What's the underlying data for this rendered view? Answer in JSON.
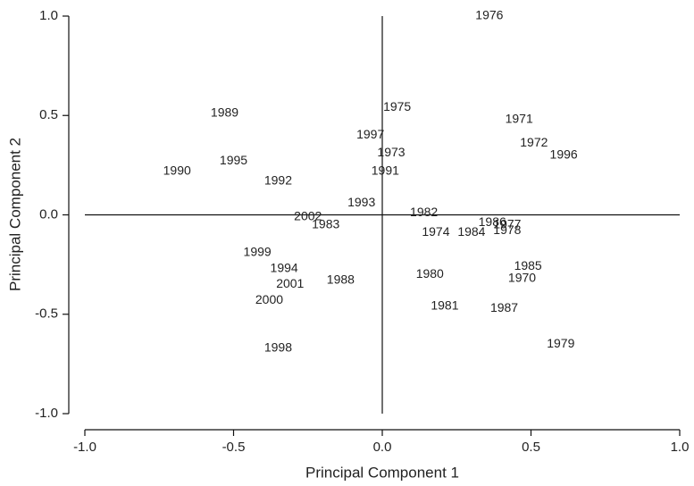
{
  "chart_data": {
    "type": "scatter",
    "xlabel": "Principal Component 1",
    "ylabel": "Principal Component 2",
    "labels": [
      "1976",
      "1989",
      "1975",
      "1971",
      "1997",
      "1972",
      "1973",
      "1996",
      "1990",
      "1995",
      "1991",
      "1992",
      "1993",
      "1982",
      "2002",
      "1983",
      "1986",
      "1977",
      "1974",
      "1984",
      "1978",
      "1999",
      "1994",
      "1985",
      "1980",
      "1988",
      "1970",
      "2001",
      "2000",
      "1981",
      "1987",
      "1998",
      "1979"
    ],
    "x": [
      0.36,
      -0.53,
      0.05,
      0.46,
      -0.04,
      0.51,
      0.03,
      0.61,
      -0.69,
      -0.5,
      0.01,
      -0.35,
      -0.07,
      0.14,
      -0.25,
      -0.19,
      0.37,
      0.42,
      0.18,
      0.3,
      0.42,
      -0.42,
      -0.33,
      0.49,
      0.16,
      -0.14,
      0.47,
      -0.31,
      -0.38,
      0.21,
      0.41,
      -0.35,
      0.6
    ],
    "y": [
      1.0,
      0.51,
      0.54,
      0.48,
      0.4,
      0.36,
      0.31,
      0.3,
      0.22,
      0.27,
      0.22,
      0.17,
      0.06,
      0.01,
      -0.01,
      -0.05,
      -0.04,
      -0.05,
      -0.09,
      -0.09,
      -0.08,
      -0.19,
      -0.27,
      -0.26,
      -0.3,
      -0.33,
      -0.32,
      -0.35,
      -0.43,
      -0.46,
      -0.47,
      -0.67,
      -0.65
    ],
    "xlim": [
      -1.0,
      1.0
    ],
    "ylim": [
      -1.0,
      1.0
    ],
    "xticks": [
      {
        "value": -1.0,
        "label": "-1.0"
      },
      {
        "value": -0.5,
        "label": "-0.5"
      },
      {
        "value": 0,
        "label": "0.0"
      },
      {
        "value": 0.5,
        "label": "0.5"
      },
      {
        "value": 1.0,
        "label": "1.0"
      }
    ],
    "yticks": [
      {
        "value": -1.0,
        "label": "-1.0"
      },
      {
        "value": -0.5,
        "label": "-0.5"
      },
      {
        "value": 0,
        "label": "0.0"
      },
      {
        "value": 0.5,
        "label": "0.5"
      },
      {
        "value": 1.0,
        "label": "1.0"
      }
    ],
    "zero_lines": true,
    "color": "#111111"
  }
}
